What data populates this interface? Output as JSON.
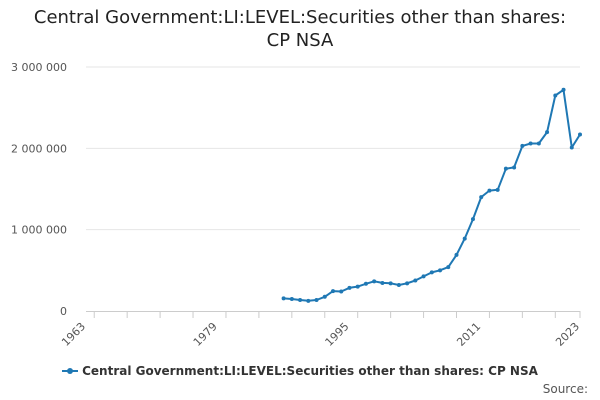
{
  "chart_data": {
    "type": "line",
    "title": [
      "Central Government:LI:LEVEL:Securities other than shares:",
      "CP NSA"
    ],
    "xlabel": "",
    "ylabel": "",
    "x_tick_labels": [
      "1963",
      "1979",
      "1995",
      "2011",
      "2023"
    ],
    "x_ticks": [
      1963,
      1979,
      1995,
      2011,
      2023
    ],
    "xlim": [
      1963,
      2023
    ],
    "y_tick_labels": [
      "0",
      "1 000 000",
      "2 000 000",
      "3 000 000"
    ],
    "y_ticks": [
      0,
      1000000,
      2000000,
      3000000
    ],
    "ylim": [
      0,
      3000000
    ],
    "grid": "horizontal",
    "legend": "bottom-center",
    "series": [
      {
        "name": "Central Government:LI:LEVEL:Securities other than shares: CP NSA",
        "color": "#1f78b4",
        "x": [
          1987,
          1988,
          1989,
          1990,
          1991,
          1992,
          1993,
          1994,
          1995,
          1996,
          1997,
          1998,
          1999,
          2000,
          2001,
          2002,
          2003,
          2004,
          2005,
          2006,
          2007,
          2008,
          2009,
          2010,
          2011,
          2012,
          2013,
          2014,
          2015,
          2016,
          2017,
          2018,
          2019,
          2020,
          2021,
          2022,
          2023
        ],
        "values": [
          155000,
          148000,
          135000,
          125000,
          135000,
          175000,
          245000,
          240000,
          285000,
          300000,
          335000,
          365000,
          345000,
          340000,
          320000,
          340000,
          375000,
          425000,
          475000,
          500000,
          540000,
          690000,
          890000,
          1130000,
          1400000,
          1480000,
          1490000,
          1750000,
          1765000,
          2030000,
          2060000,
          2060000,
          2200000,
          2650000,
          2720000,
          2010000,
          2170000
        ]
      }
    ]
  },
  "legend": {
    "label": "Central Government:LI:LEVEL:Securities other than shares: CP NSA"
  },
  "source": {
    "label": "Source:"
  }
}
